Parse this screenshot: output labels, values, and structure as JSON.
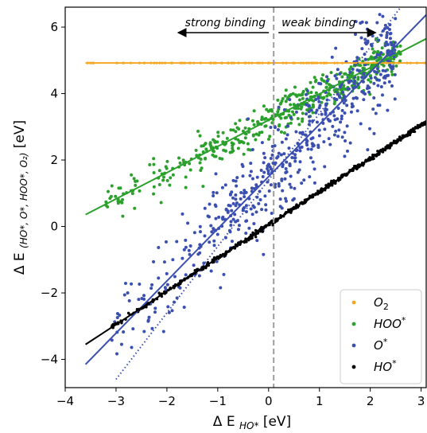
{
  "chart_data": {
    "type": "scatter",
    "xlabel_main": "Δ E",
    "xlabel_sub": "HO*",
    "xlabel_unit": "[eV]",
    "ylabel_main": "Δ E",
    "ylabel_sub": "(HO*, O*, HOO*, O₂)",
    "ylabel_unit": "[eV]",
    "xlim": [
      -4,
      3.1
    ],
    "ylim": [
      -4.85,
      6.6
    ],
    "xticks": [
      -4,
      -3,
      -2,
      -1,
      0,
      1,
      2,
      3
    ],
    "yticks": [
      -4,
      -2,
      0,
      2,
      4,
      6
    ],
    "xtick_labels": [
      "−4",
      "−3",
      "−2",
      "−1",
      "0",
      "1",
      "2",
      "3"
    ],
    "ytick_labels": [
      "−4",
      "−2",
      "0",
      "2",
      "4",
      "6"
    ],
    "vline_x": 0.1,
    "annotations": {
      "left": "strong binding",
      "right": "weak binding"
    },
    "legend_position": "lower-right",
    "series": [
      {
        "name": "O₂",
        "color": "#f5a623",
        "kind": "constant",
        "y": 4.92,
        "x_range": [
          -3.6,
          3.1
        ],
        "fit": {
          "slope": 0,
          "intercept": 4.92,
          "x_range": [
            -3.6,
            3.1
          ]
        }
      },
      {
        "name": "HOO*",
        "color": "#2ca02c",
        "kind": "linear_scatter",
        "slope": 0.79,
        "intercept": 3.2,
        "noise": 0.28,
        "count": 480,
        "x_range": [
          -3.2,
          2.6
        ],
        "fit": {
          "slope": 0.79,
          "intercept": 3.2,
          "x_range": [
            -3.6,
            3.1
          ]
        }
      },
      {
        "name": "O*",
        "color": "#3a4fb0",
        "kind": "linear_scatter",
        "slope": 1.57,
        "intercept": 1.5,
        "noise": 0.75,
        "count": 560,
        "x_range": [
          -3.2,
          2.5
        ],
        "fit": {
          "slope": 1.57,
          "intercept": 1.5,
          "x_range": [
            -3.6,
            3.1
          ]
        },
        "fit2": {
          "slope": 2.0,
          "intercept": 1.4,
          "x_range": [
            -3.0,
            2.05
          ],
          "style": "dotted"
        }
      },
      {
        "name": "HO*",
        "color": "#000000",
        "kind": "identity",
        "slope": 1.0,
        "intercept": 0.05,
        "count": 600,
        "x_range": [
          -3.2,
          3.1
        ],
        "fit": {
          "slope": 1.0,
          "intercept": 0.05,
          "x_range": [
            -3.6,
            3.1
          ]
        }
      }
    ]
  },
  "legend": {
    "items": [
      {
        "label": "O",
        "sub": "2",
        "sup": "",
        "color": "#f5a623"
      },
      {
        "label": "HOO",
        "sub": "",
        "sup": "*",
        "color": "#2ca02c"
      },
      {
        "label": "O",
        "sub": "",
        "sup": "*",
        "color": "#3a4fb0"
      },
      {
        "label": "HO",
        "sub": "",
        "sup": "*",
        "color": "#000000"
      }
    ]
  }
}
